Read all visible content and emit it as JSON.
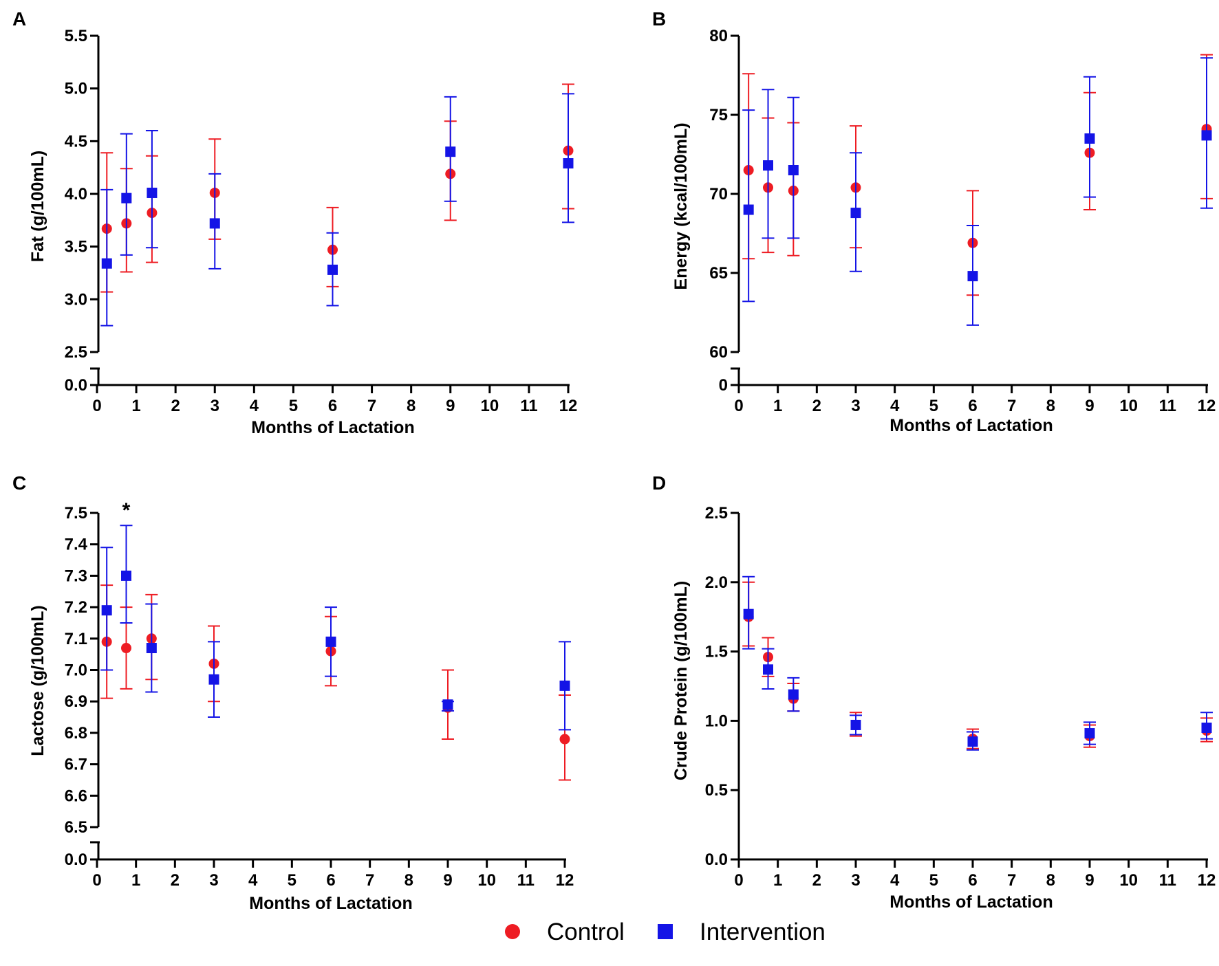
{
  "legend": {
    "control_label": "Control",
    "intervention_label": "Intervention"
  },
  "colors": {
    "control": "#ee1c23",
    "intervention": "#1414e6",
    "axis": "#000000"
  },
  "chart_data": [
    {
      "type": "scatter",
      "panel_label": "A",
      "xlabel": "Months of Lactation",
      "ylabel": "Fat (g/100mL)",
      "xlim": [
        0,
        12
      ],
      "xticks": [
        "0",
        "1",
        "2",
        "3",
        "4",
        "5",
        "6",
        "7",
        "8",
        "9",
        "10",
        "11",
        "12"
      ],
      "ylim": [
        2.5,
        5.5
      ],
      "yticks": [
        "2.5",
        "3.0",
        "3.5",
        "4.0",
        "4.5",
        "5.0",
        "5.5"
      ],
      "broken_axis": true,
      "broken_zero_label": "0.0",
      "annotations": [],
      "series": [
        {
          "name": "Control",
          "marker": "circle",
          "x": [
            0.25,
            0.75,
            1.4,
            3,
            6,
            9,
            12
          ],
          "y": [
            3.67,
            3.72,
            3.82,
            4.01,
            3.47,
            4.19,
            4.41
          ],
          "err_low": [
            3.07,
            3.26,
            3.35,
            3.57,
            3.12,
            3.75,
            3.86
          ],
          "err_high": [
            4.39,
            4.24,
            4.36,
            4.52,
            3.87,
            4.69,
            5.04
          ]
        },
        {
          "name": "Intervention",
          "marker": "square",
          "x": [
            0.25,
            0.75,
            1.4,
            3,
            6,
            9,
            12
          ],
          "y": [
            3.34,
            3.96,
            4.01,
            3.72,
            3.28,
            4.4,
            4.29
          ],
          "err_low": [
            2.75,
            3.42,
            3.49,
            3.29,
            2.94,
            3.93,
            3.73
          ],
          "err_high": [
            4.04,
            4.57,
            4.6,
            4.19,
            3.63,
            4.92,
            4.95
          ]
        }
      ]
    },
    {
      "type": "scatter",
      "panel_label": "B",
      "xlabel": "Months of Lactation",
      "ylabel": "Energy (kcal/100mL)",
      "xlim": [
        0,
        12
      ],
      "xticks": [
        "0",
        "1",
        "2",
        "3",
        "4",
        "5",
        "6",
        "7",
        "8",
        "9",
        "10",
        "11",
        "12"
      ],
      "ylim": [
        60,
        80
      ],
      "yticks": [
        "60",
        "65",
        "70",
        "75",
        "80"
      ],
      "broken_axis": true,
      "broken_zero_label": "0",
      "annotations": [],
      "series": [
        {
          "name": "Control",
          "marker": "circle",
          "x": [
            0.25,
            0.75,
            1.4,
            3,
            6,
            9,
            12
          ],
          "y": [
            71.5,
            70.4,
            70.2,
            70.4,
            66.9,
            72.6,
            74.1
          ],
          "err_low": [
            65.9,
            66.3,
            66.1,
            66.6,
            63.6,
            69.0,
            69.7
          ],
          "err_high": [
            77.6,
            74.8,
            74.5,
            74.3,
            70.2,
            76.4,
            78.8
          ]
        },
        {
          "name": "Intervention",
          "marker": "square",
          "x": [
            0.25,
            0.75,
            1.4,
            3,
            6,
            9,
            12
          ],
          "y": [
            69.0,
            71.8,
            71.5,
            68.8,
            64.8,
            73.5,
            73.7
          ],
          "err_low": [
            63.2,
            67.2,
            67.2,
            65.1,
            61.7,
            69.8,
            69.1
          ],
          "err_high": [
            75.3,
            76.6,
            76.1,
            72.6,
            68.0,
            77.4,
            78.6
          ]
        }
      ]
    },
    {
      "type": "scatter",
      "panel_label": "C",
      "xlabel": "Months of Lactation",
      "ylabel": "Lactose (g/100mL)",
      "xlim": [
        0,
        12
      ],
      "xticks": [
        "0",
        "1",
        "2",
        "3",
        "4",
        "5",
        "6",
        "7",
        "8",
        "9",
        "10",
        "11",
        "12"
      ],
      "ylim": [
        6.5,
        7.5
      ],
      "yticks": [
        "6.5",
        "6.6",
        "6.7",
        "6.8",
        "6.9",
        "7.0",
        "7.1",
        "7.2",
        "7.3",
        "7.4",
        "7.5"
      ],
      "broken_axis": true,
      "broken_zero_label": "0.0",
      "annotations": [
        {
          "text": "*",
          "x": 0.75,
          "y": 7.5
        }
      ],
      "series": [
        {
          "name": "Control",
          "marker": "circle",
          "x": [
            0.25,
            0.75,
            1.4,
            3,
            6,
            9,
            12
          ],
          "y": [
            7.09,
            7.07,
            7.1,
            7.02,
            7.06,
            6.88,
            6.78
          ],
          "err_low": [
            6.91,
            6.94,
            6.97,
            6.9,
            6.95,
            6.78,
            6.65
          ],
          "err_high": [
            7.27,
            7.2,
            7.24,
            7.14,
            7.17,
            7.0,
            6.92
          ]
        },
        {
          "name": "Intervention",
          "marker": "square",
          "x": [
            0.25,
            0.75,
            1.4,
            3,
            6,
            9,
            12
          ],
          "y": [
            7.19,
            7.3,
            7.07,
            6.97,
            7.09,
            6.89,
            6.95
          ],
          "err_low": [
            7.0,
            7.15,
            6.93,
            6.85,
            6.98,
            6.87,
            6.81
          ],
          "err_high": [
            7.39,
            7.46,
            7.21,
            7.09,
            7.2,
            6.9,
            7.09
          ]
        }
      ]
    },
    {
      "type": "scatter",
      "panel_label": "D",
      "xlabel": "Months of Lactation",
      "ylabel": "Crude Protein (g/100mL)",
      "xlim": [
        0,
        12
      ],
      "xticks": [
        "0",
        "1",
        "2",
        "3",
        "4",
        "5",
        "6",
        "7",
        "8",
        "9",
        "10",
        "11",
        "12"
      ],
      "ylim": [
        0,
        2.5
      ],
      "yticks": [
        "0.0",
        "0.5",
        "1.0",
        "1.5",
        "2.0",
        "2.5"
      ],
      "broken_axis": false,
      "annotations": [],
      "series": [
        {
          "name": "Control",
          "marker": "circle",
          "x": [
            0.25,
            0.75,
            1.4,
            3,
            6,
            9,
            12
          ],
          "y": [
            1.75,
            1.46,
            1.16,
            0.97,
            0.87,
            0.89,
            0.93
          ],
          "err_low": [
            1.54,
            1.32,
            1.07,
            0.89,
            0.8,
            0.81,
            0.85
          ],
          "err_high": [
            2.0,
            1.6,
            1.27,
            1.06,
            0.94,
            0.97,
            1.02
          ]
        },
        {
          "name": "Intervention",
          "marker": "square",
          "x": [
            0.25,
            0.75,
            1.4,
            3,
            6,
            9,
            12
          ],
          "y": [
            1.77,
            1.37,
            1.19,
            0.97,
            0.85,
            0.91,
            0.95
          ],
          "err_low": [
            1.52,
            1.23,
            1.07,
            0.9,
            0.79,
            0.83,
            0.87
          ],
          "err_high": [
            2.04,
            1.52,
            1.31,
            1.04,
            0.92,
            0.99,
            1.06
          ]
        }
      ]
    }
  ]
}
